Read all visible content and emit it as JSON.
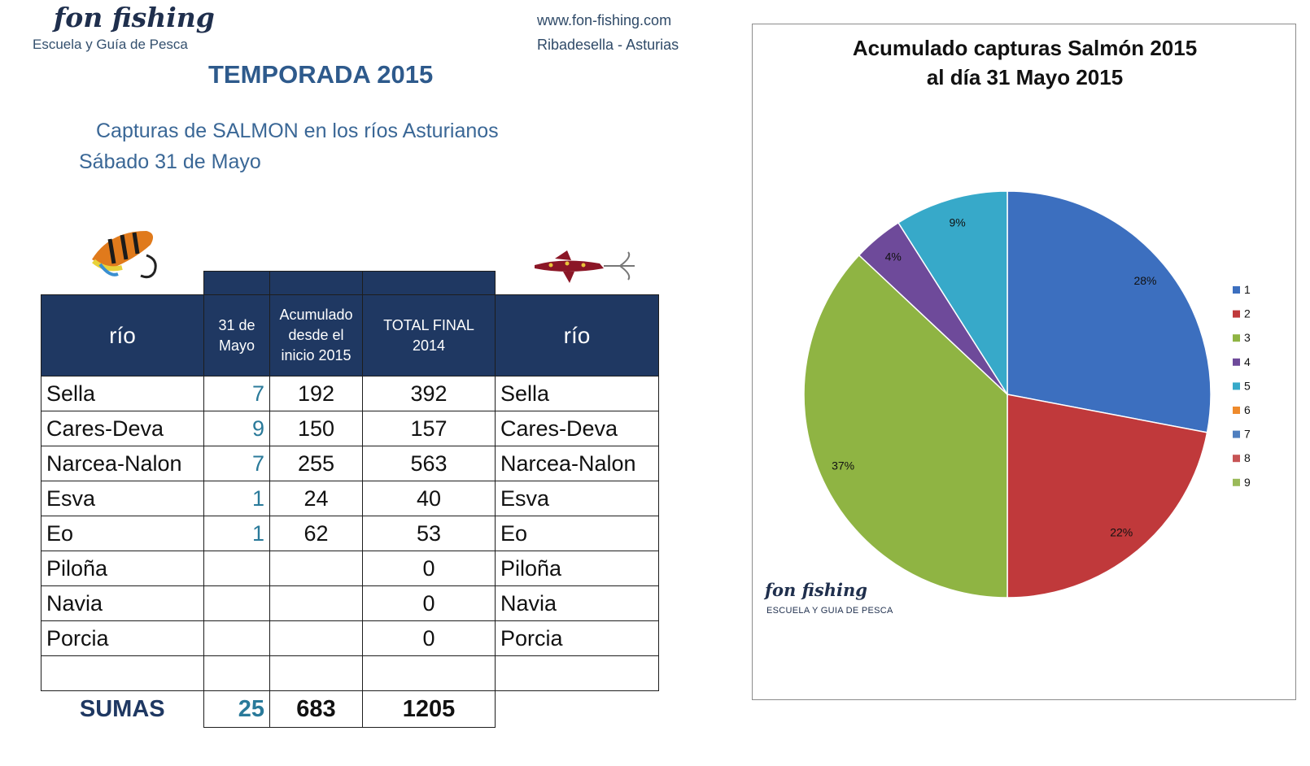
{
  "brand": {
    "logo": "fon fishing",
    "subtitle": "Escuela y Guía de Pesca",
    "website": "www.fon-fishing.com",
    "location": "Ribadesella - Asturias"
  },
  "season_title": "TEMPORADA 2015",
  "subtitle": "Capturas de SALMON en los ríos Asturianos",
  "date_line": "Sábado 31  de Mayo",
  "table": {
    "headers": {
      "rio_left": "río",
      "day": [
        "31  de",
        "Mayo"
      ],
      "cumulative": [
        "Acumulado",
        "desde el",
        "inicio 2015"
      ],
      "total": [
        "TOTAL FINAL",
        "2014"
      ],
      "rio_right": "río"
    },
    "rows": [
      {
        "rio": "Sella",
        "day": "7",
        "cum": "192",
        "total": "392",
        "rio2": "Sella"
      },
      {
        "rio": "Cares-Deva",
        "day": "9",
        "cum": "150",
        "total": "157",
        "rio2": "Cares-Deva"
      },
      {
        "rio": "Narcea-Nalon",
        "day": "7",
        "cum": "255",
        "total": "563",
        "rio2": "Narcea-Nalon"
      },
      {
        "rio": "Esva",
        "day": "1",
        "cum": "24",
        "total": "40",
        "rio2": "Esva"
      },
      {
        "rio": "Eo",
        "day": "1",
        "cum": "62",
        "total": "53",
        "rio2": "Eo"
      },
      {
        "rio": "Piloña",
        "day": "",
        "cum": "",
        "total": "0",
        "rio2": "Piloña"
      },
      {
        "rio": "Navia",
        "day": "",
        "cum": "",
        "total": "0",
        "rio2": "Navia"
      },
      {
        "rio": "Porcia",
        "day": "",
        "cum": "",
        "total": "0",
        "rio2": "Porcia"
      },
      {
        "rio": "",
        "day": "",
        "cum": "",
        "total": "",
        "rio2": ""
      }
    ],
    "sums": {
      "label": "SUMAS",
      "day": "25",
      "cum": "683",
      "total": "1205"
    }
  },
  "chart_data": {
    "type": "pie",
    "title": "Acumulado capturas  Salmón 2015",
    "subtitle": "al día 31 Mayo 2015",
    "categories": [
      "1",
      "2",
      "3",
      "4",
      "5",
      "6",
      "7",
      "8",
      "9"
    ],
    "values": [
      28,
      22,
      37,
      4,
      9,
      0,
      0,
      0,
      0
    ],
    "data_labels": [
      "28%",
      "22%",
      "37%",
      "4%",
      "9%",
      "",
      "",
      "",
      ""
    ],
    "colors": [
      "#3c6fbf",
      "#c0393b",
      "#8fb443",
      "#6e4a9a",
      "#37a9c9",
      "#ee8a2c",
      "#4f7fbf",
      "#c75455",
      "#9aba59"
    ],
    "legend_position": "right",
    "watermark": {
      "logo": "fon  fishing",
      "subtitle": "ESCUELA  Y  GUIA DE PESCA"
    }
  }
}
